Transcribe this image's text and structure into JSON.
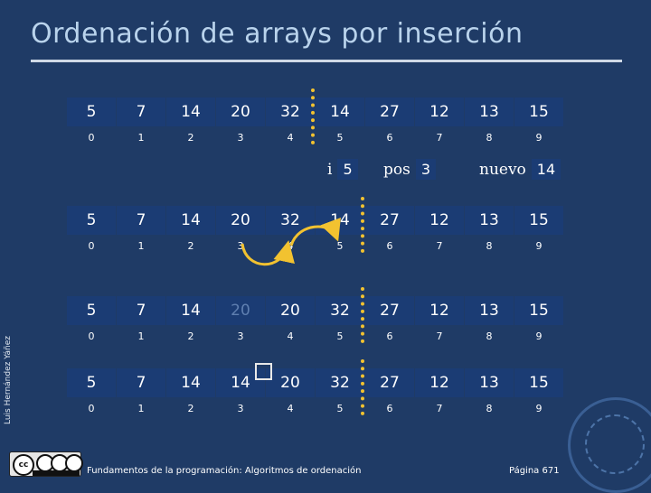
{
  "title": "Ordenación de arrays por inserción",
  "side_credit": "Luis Hernández Yáñez",
  "indices": [
    "0",
    "1",
    "2",
    "3",
    "4",
    "5",
    "6",
    "7",
    "8",
    "9"
  ],
  "rows": [
    [
      "5",
      "7",
      "14",
      "20",
      "32",
      "14",
      "27",
      "12",
      "13",
      "15"
    ],
    [
      "5",
      "7",
      "14",
      "20",
      "32",
      "14",
      "27",
      "12",
      "13",
      "15"
    ],
    [
      "5",
      "7",
      "14",
      "20",
      "20",
      "32",
      "27",
      "12",
      "13",
      "15"
    ],
    [
      "5",
      "7",
      "14",
      "14",
      "20",
      "32",
      "27",
      "12",
      "13",
      "15"
    ]
  ],
  "vars": {
    "i_label": "i",
    "i_value": "5",
    "pos_label": "pos",
    "pos_value": "3",
    "nuevo_label": "nuevo",
    "nuevo_value": "14"
  },
  "footer": "Fundamentos de la programación: Algoritmos de ordenación",
  "page": "Página 671",
  "colors": {
    "background": "#1f3b66",
    "cell": "#1b3c74",
    "divider": "#f2c230",
    "arrow": "#f2c230"
  }
}
